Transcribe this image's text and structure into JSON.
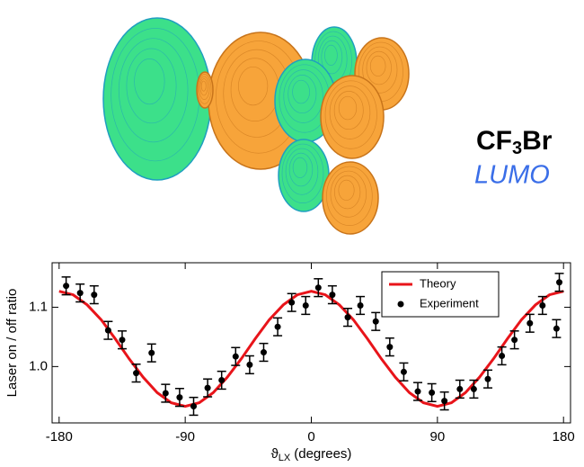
{
  "molecule": {
    "formula": [
      "CF",
      "3",
      "Br"
    ],
    "orbital": "LUMO"
  },
  "chart_data": {
    "type": "line",
    "xlabel": {
      "symbol": "ϑ",
      "subscript": "LX",
      "text": "(degrees)"
    },
    "ylabel": "Laser on / off ratio",
    "xlim": [
      -185,
      185
    ],
    "ylim": [
      0.905,
      1.175
    ],
    "xticks": [
      -180,
      -90,
      0,
      90,
      180
    ],
    "yticks": [
      {
        "value": 1.0,
        "label": "1.0"
      },
      1.1
    ],
    "legend": "top-right",
    "series": [
      {
        "name": "Theory",
        "type": "line",
        "color": "#e8141a",
        "x": [
          -180,
          -170,
          -160,
          -150,
          -140,
          -130,
          -120,
          -110,
          -100,
          -90,
          -80,
          -70,
          -60,
          -50,
          -40,
          -30,
          -20,
          -10,
          0,
          10,
          20,
          30,
          40,
          50,
          60,
          70,
          80,
          90,
          100,
          110,
          120,
          130,
          140,
          150,
          160,
          170,
          180
        ],
        "values": [
          1.127,
          1.121,
          1.104,
          1.079,
          1.047,
          1.013,
          0.982,
          0.956,
          0.939,
          0.933,
          0.939,
          0.956,
          0.982,
          1.013,
          1.047,
          1.079,
          1.104,
          1.121,
          1.127,
          1.121,
          1.104,
          1.079,
          1.047,
          1.013,
          0.982,
          0.956,
          0.939,
          0.933,
          0.939,
          0.956,
          0.982,
          1.013,
          1.047,
          1.079,
          1.104,
          1.121,
          1.127
        ]
      },
      {
        "name": "Experiment",
        "type": "errorbar",
        "color": "#000000",
        "x": [
          -175,
          -165,
          -155,
          -145,
          -135,
          -125,
          -114,
          -104,
          -94,
          -84,
          -74,
          -64,
          -54,
          -44,
          -34,
          -24,
          -14,
          -4,
          5,
          15,
          26,
          35,
          46,
          56,
          66,
          76,
          86,
          95,
          106,
          116,
          126,
          136,
          145,
          156,
          165,
          175,
          177
        ],
        "values": [
          1.136,
          1.124,
          1.121,
          1.061,
          1.045,
          0.989,
          1.023,
          0.955,
          0.948,
          0.933,
          0.964,
          0.977,
          1.017,
          1.003,
          1.024,
          1.067,
          1.108,
          1.103,
          1.133,
          1.121,
          1.083,
          1.103,
          1.076,
          1.033,
          0.991,
          0.958,
          0.956,
          0.942,
          0.962,
          0.962,
          0.979,
          1.018,
          1.045,
          1.073,
          1.103,
          1.064,
          1.142
        ],
        "errors": [
          0.015,
          0.015,
          0.015,
          0.015,
          0.015,
          0.015,
          0.015,
          0.015,
          0.015,
          0.015,
          0.015,
          0.015,
          0.015,
          0.015,
          0.015,
          0.015,
          0.015,
          0.015,
          0.015,
          0.015,
          0.015,
          0.015,
          0.015,
          0.015,
          0.015,
          0.015,
          0.015,
          0.015,
          0.015,
          0.015,
          0.015,
          0.015,
          0.015,
          0.015,
          0.015,
          0.015,
          0.015
        ]
      }
    ]
  }
}
